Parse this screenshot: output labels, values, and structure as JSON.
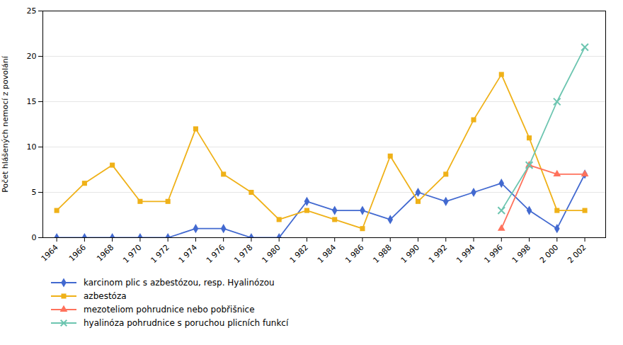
{
  "chart_data": {
    "type": "line",
    "x": [
      1964,
      1966,
      1968,
      1970,
      1972,
      1974,
      1976,
      1978,
      1980,
      1982,
      1984,
      1986,
      1988,
      1990,
      1992,
      1994,
      1996,
      1998,
      2000,
      2002
    ],
    "xlim": [
      1963,
      2003.5
    ],
    "xticks": [
      1964,
      1966,
      1968,
      {
        "value": 1970,
        "label": "1 970"
      },
      {
        "value": 1972,
        "label": "1 972"
      },
      {
        "value": 1974,
        "label": "1 974"
      },
      {
        "value": 1976,
        "label": "1 976"
      },
      {
        "value": 1978,
        "label": "1 978"
      },
      {
        "value": 1980,
        "label": "1 980"
      },
      {
        "value": 1982,
        "label": "1 982"
      },
      {
        "value": 1984,
        "label": "1 984"
      },
      {
        "value": 1986,
        "label": "1 986"
      },
      {
        "value": 1988,
        "label": "1 988"
      },
      {
        "value": 1990,
        "label": "1 990"
      },
      {
        "value": 1992,
        "label": "1 992"
      },
      {
        "value": 1994,
        "label": "1 994"
      },
      {
        "value": 1996,
        "label": "1 996"
      },
      {
        "value": 1998,
        "label": "1 998"
      },
      {
        "value": 2000,
        "label": "2 000"
      },
      {
        "value": 2002,
        "label": "2 002"
      }
    ],
    "ylabel": "Počet hlášených nemocí z povolání",
    "ylim": [
      0,
      25
    ],
    "yticks": [
      0,
      5,
      10,
      15,
      20,
      25
    ],
    "grid": true,
    "legend": "bottom",
    "series": [
      {
        "name": "karcinom plic s azbestózou, resp. Hyalinózou",
        "marker": "diamond",
        "values": [
          0,
          0,
          0,
          0,
          0,
          1,
          1,
          0,
          0,
          4,
          3,
          3,
          2,
          5,
          4,
          5,
          6,
          3,
          1,
          7
        ]
      },
      {
        "name": "azbestóza",
        "marker": "square",
        "values": [
          3,
          6,
          8,
          4,
          4,
          12,
          7,
          5,
          2,
          3,
          2,
          1,
          9,
          4,
          7,
          13,
          18,
          11,
          3,
          3
        ]
      },
      {
        "name": "mezoteliom pohrudnice nebo pobřišnice",
        "marker": "triangle",
        "x": [
          1996,
          1998,
          2000,
          2002
        ],
        "values": [
          1,
          8,
          7,
          7
        ]
      },
      {
        "name": "hyalinóza pohrudnice s poruchou plicních funkcí",
        "marker": "x",
        "x": [
          1996,
          1998,
          2000,
          2002
        ],
        "values": [
          3,
          8,
          15,
          21
        ]
      }
    ]
  }
}
